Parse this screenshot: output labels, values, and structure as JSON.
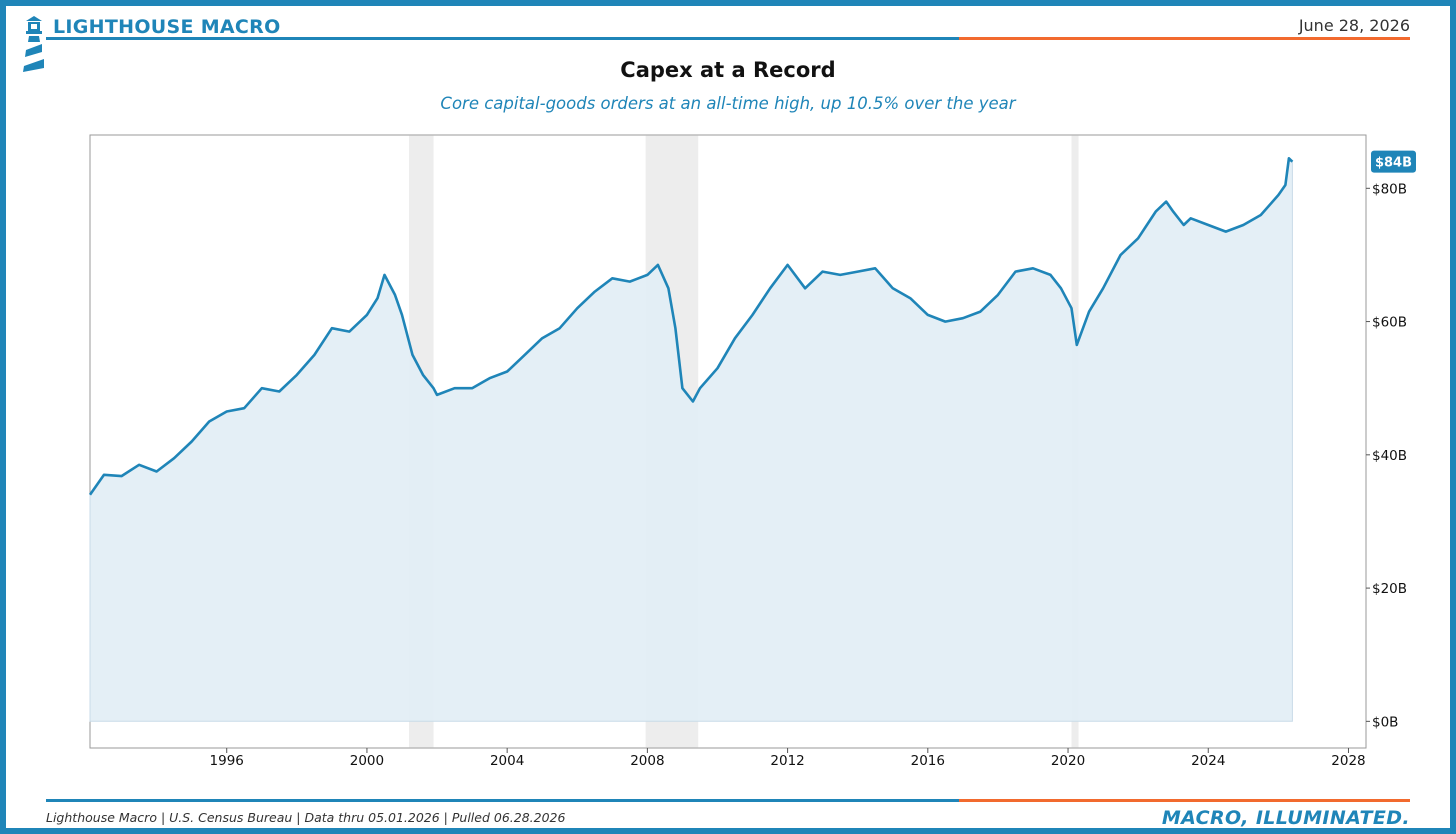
{
  "header": {
    "brand": "LIGHTHOUSE MACRO",
    "date": "June 28, 2026"
  },
  "colors": {
    "accent": "#1f85b8",
    "secondary": "#f26a2e",
    "fill": "#e3eef6",
    "recession": "#b9b9b9"
  },
  "footer": {
    "source": "Lighthouse Macro | U.S. Census Bureau | Data thru 05.01.2026 | Pulled 06.28.2026",
    "tagline": "MACRO, ILLUMINATED."
  },
  "chart_data": {
    "type": "area",
    "title": "Capex at a Record",
    "subtitle": "Core capital-goods orders at an all-time high, up 10.5% over the year",
    "xlabel": "",
    "ylabel": "",
    "x_ticks": [
      "1996",
      "2000",
      "2004",
      "2008",
      "2012",
      "2016",
      "2020",
      "2024",
      "2028"
    ],
    "y_ticks": [
      "$0B",
      "$20B",
      "$40B",
      "$60B",
      "$80B"
    ],
    "xlim": [
      1992.1,
      2028.5
    ],
    "ylim": [
      -4,
      88
    ],
    "y_axis_side": "right",
    "grid": false,
    "last_value_label": "$84B",
    "recessions": [
      [
        2001.2,
        2001.9
      ],
      [
        2007.95,
        2009.45
      ],
      [
        2020.1,
        2020.3
      ]
    ],
    "series": [
      {
        "values_unit": "$B",
        "points": [
          [
            1992.1,
            34
          ],
          [
            1992.5,
            37
          ],
          [
            1993.0,
            36.8
          ],
          [
            1993.5,
            38.5
          ],
          [
            1994.0,
            37.5
          ],
          [
            1994.5,
            39.5
          ],
          [
            1995.0,
            42
          ],
          [
            1995.5,
            45
          ],
          [
            1996.0,
            46.5
          ],
          [
            1996.5,
            47
          ],
          [
            1997.0,
            50
          ],
          [
            1997.5,
            49.5
          ],
          [
            1998.0,
            52
          ],
          [
            1998.5,
            55
          ],
          [
            1999.0,
            59
          ],
          [
            1999.5,
            58.5
          ],
          [
            2000.0,
            61
          ],
          [
            2000.3,
            63.5
          ],
          [
            2000.5,
            67
          ],
          [
            2000.8,
            64
          ],
          [
            2001.0,
            61
          ],
          [
            2001.3,
            55
          ],
          [
            2001.6,
            52
          ],
          [
            2001.9,
            50
          ],
          [
            2002.0,
            49
          ],
          [
            2002.5,
            50
          ],
          [
            2003.0,
            50
          ],
          [
            2003.5,
            51.5
          ],
          [
            2004.0,
            52.5
          ],
          [
            2004.5,
            55
          ],
          [
            2005.0,
            57.5
          ],
          [
            2005.5,
            59
          ],
          [
            2006.0,
            62
          ],
          [
            2006.5,
            64.5
          ],
          [
            2007.0,
            66.5
          ],
          [
            2007.5,
            66
          ],
          [
            2008.0,
            67
          ],
          [
            2008.3,
            68.5
          ],
          [
            2008.6,
            65
          ],
          [
            2008.8,
            59
          ],
          [
            2009.0,
            50
          ],
          [
            2009.3,
            48
          ],
          [
            2009.5,
            50
          ],
          [
            2010.0,
            53
          ],
          [
            2010.5,
            57.5
          ],
          [
            2011.0,
            61
          ],
          [
            2011.5,
            65
          ],
          [
            2012.0,
            68.5
          ],
          [
            2012.5,
            65
          ],
          [
            2013.0,
            67.5
          ],
          [
            2013.5,
            67
          ],
          [
            2014.0,
            67.5
          ],
          [
            2014.5,
            68
          ],
          [
            2015.0,
            65
          ],
          [
            2015.5,
            63.5
          ],
          [
            2016.0,
            61
          ],
          [
            2016.5,
            60
          ],
          [
            2017.0,
            60.5
          ],
          [
            2017.5,
            61.5
          ],
          [
            2018.0,
            64
          ],
          [
            2018.5,
            67.5
          ],
          [
            2019.0,
            68
          ],
          [
            2019.5,
            67
          ],
          [
            2019.8,
            65
          ],
          [
            2020.1,
            62
          ],
          [
            2020.25,
            56.5
          ],
          [
            2020.6,
            61.5
          ],
          [
            2021.0,
            65
          ],
          [
            2021.5,
            70
          ],
          [
            2022.0,
            72.5
          ],
          [
            2022.5,
            76.5
          ],
          [
            2022.8,
            78
          ],
          [
            2023.0,
            76.5
          ],
          [
            2023.3,
            74.5
          ],
          [
            2023.5,
            75.5
          ],
          [
            2024.0,
            74.5
          ],
          [
            2024.5,
            73.5
          ],
          [
            2025.0,
            74.5
          ],
          [
            2025.5,
            76
          ],
          [
            2026.0,
            79
          ],
          [
            2026.2,
            80.5
          ],
          [
            2026.3,
            84.5
          ],
          [
            2026.4,
            84
          ]
        ]
      }
    ]
  }
}
